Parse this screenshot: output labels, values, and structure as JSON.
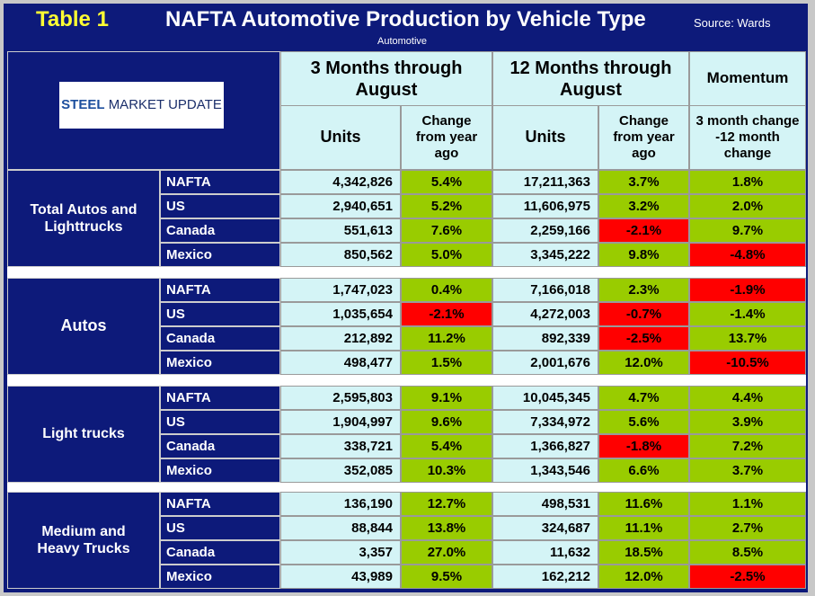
{
  "header": {
    "table_label": "Table 1",
    "title": "NAFTA Automotive Production by Vehicle Type",
    "source": "Source: Wards",
    "subtitle": "Automotive"
  },
  "logo": {
    "words": [
      "STEEL",
      "MARKET UPDATE"
    ]
  },
  "column_groups": [
    "3 Months through August",
    "12 Months through August",
    "Momentum"
  ],
  "column_headers": [
    "Units",
    "Change from year ago",
    "Units",
    "Change from year ago",
    "3 month change -12 month change"
  ],
  "groups": [
    {
      "label": "Total Autos and Lighttrucks",
      "rows": [
        {
          "region": "NAFTA",
          "cells": [
            "4,342,826",
            "5.4%",
            "17,211,363",
            "3.7%",
            "1.8%"
          ],
          "red": []
        },
        {
          "region": "US",
          "cells": [
            "2,940,651",
            "5.2%",
            "11,606,975",
            "3.2%",
            "2.0%"
          ],
          "red": []
        },
        {
          "region": "Canada",
          "cells": [
            "551,613",
            "7.6%",
            "2,259,166",
            "-2.1%",
            "9.7%"
          ],
          "red": [
            3
          ]
        },
        {
          "region": "Mexico",
          "cells": [
            "850,562",
            "5.0%",
            "3,345,222",
            "9.8%",
            "-4.8%"
          ],
          "red": [
            4
          ]
        }
      ]
    },
    {
      "label": "Autos",
      "rows": [
        {
          "region": "NAFTA",
          "cells": [
            "1,747,023",
            "0.4%",
            "7,166,018",
            "2.3%",
            "-1.9%"
          ],
          "red": [
            4
          ]
        },
        {
          "region": "US",
          "cells": [
            "1,035,654",
            "-2.1%",
            "4,272,003",
            "-0.7%",
            "-1.4%"
          ],
          "red": [
            1,
            3
          ]
        },
        {
          "region": "Canada",
          "cells": [
            "212,892",
            "11.2%",
            "892,339",
            "-2.5%",
            "13.7%"
          ],
          "red": [
            3
          ]
        },
        {
          "region": "Mexico",
          "cells": [
            "498,477",
            "1.5%",
            "2,001,676",
            "12.0%",
            "-10.5%"
          ],
          "red": [
            4
          ]
        }
      ]
    },
    {
      "label": "Light trucks",
      "rows": [
        {
          "region": "NAFTA",
          "cells": [
            "2,595,803",
            "9.1%",
            "10,045,345",
            "4.7%",
            "4.4%"
          ],
          "red": []
        },
        {
          "region": "US",
          "cells": [
            "1,904,997",
            "9.6%",
            "7,334,972",
            "5.6%",
            "3.9%"
          ],
          "red": []
        },
        {
          "region": "Canada",
          "cells": [
            "338,721",
            "5.4%",
            "1,366,827",
            "-1.8%",
            "7.2%"
          ],
          "red": [
            3
          ]
        },
        {
          "region": "Mexico",
          "cells": [
            "352,085",
            "10.3%",
            "1,343,546",
            "6.6%",
            "3.7%"
          ],
          "red": []
        }
      ]
    },
    {
      "label": "Medium and Heavy Trucks",
      "rows": [
        {
          "region": "NAFTA",
          "cells": [
            "136,190",
            "12.7%",
            "498,531",
            "11.6%",
            "1.1%"
          ],
          "red": []
        },
        {
          "region": "US",
          "cells": [
            "88,844",
            "13.8%",
            "324,687",
            "11.1%",
            "2.7%"
          ],
          "red": []
        },
        {
          "region": "Canada",
          "cells": [
            "3,357",
            "27.0%",
            "11,632",
            "18.5%",
            "8.5%"
          ],
          "red": []
        },
        {
          "region": "Mexico",
          "cells": [
            "43,989",
            "9.5%",
            "162,212",
            "12.0%",
            "-2.5%"
          ],
          "red": [
            4
          ]
        }
      ]
    }
  ]
}
